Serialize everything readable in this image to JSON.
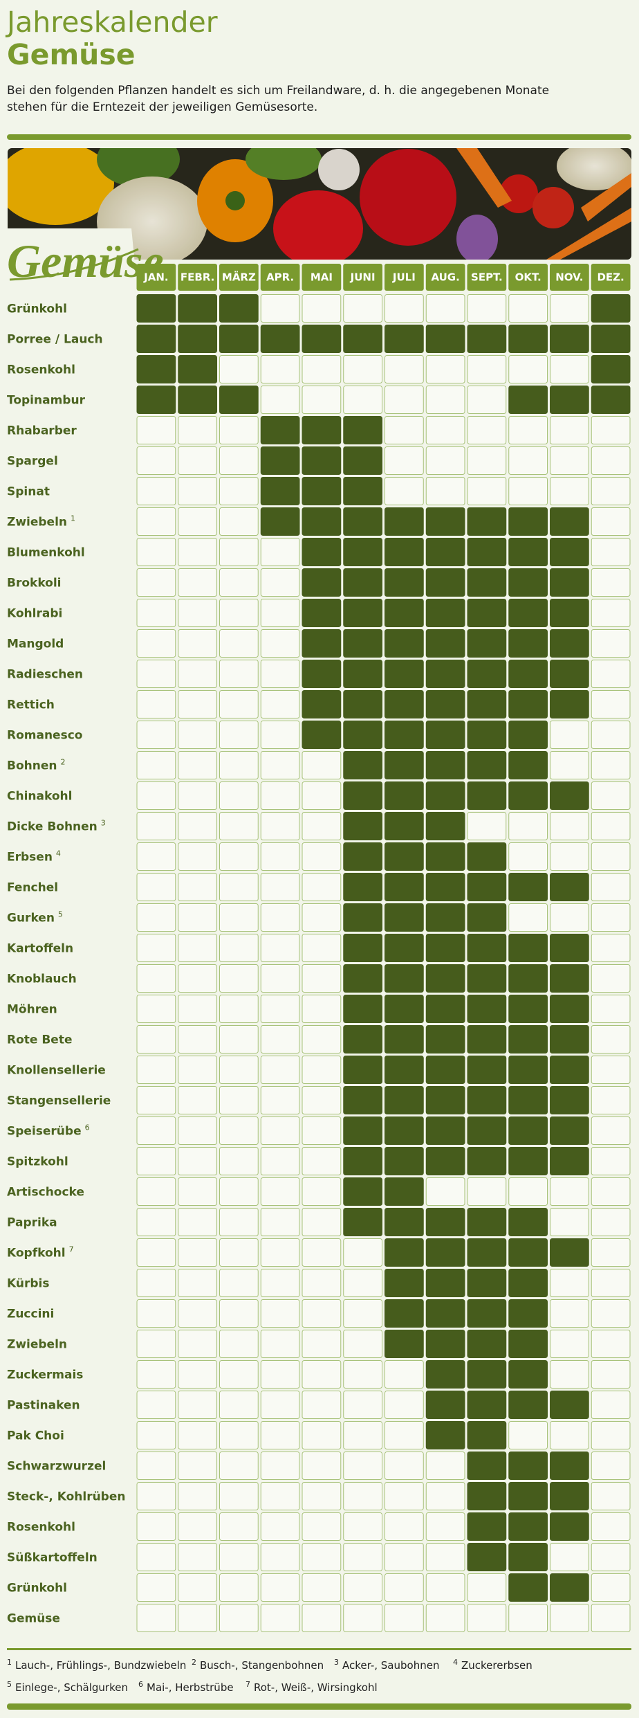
{
  "header": {
    "title": "Jahreskalender",
    "subtitle": "Gemüse",
    "intro": [
      "Bei den folgenden Pflanzen handelt es sich um Freilandware, d. h. die angegebenen Monate",
      "stehen für die Erntezeit der jeweiligen Gemüsesorte."
    ]
  },
  "logo": "Gemüse",
  "months": [
    "JAN.",
    "FEBR.",
    "MÄRZ",
    "APR.",
    "MAI",
    "JUNI",
    "JULI",
    "AUG.",
    "SEPT.",
    "OKT.",
    "NOV.",
    "DEZ."
  ],
  "rows": [
    {
      "name": "Grünkohl",
      "harvest": [
        true,
        true,
        true,
        false,
        false,
        false,
        false,
        false,
        false,
        false,
        false,
        true
      ]
    },
    {
      "name": "Porree / Lauch",
      "harvest": [
        true,
        true,
        true,
        true,
        true,
        true,
        true,
        true,
        true,
        true,
        true,
        true
      ]
    },
    {
      "name": "Rosenkohl",
      "harvest": [
        true,
        true,
        false,
        false,
        false,
        false,
        false,
        false,
        false,
        false,
        false,
        true
      ]
    },
    {
      "name": "Topinambur",
      "harvest": [
        true,
        true,
        true,
        false,
        false,
        false,
        false,
        false,
        false,
        true,
        true,
        true
      ]
    },
    {
      "name": "Rhabarber",
      "harvest": [
        false,
        false,
        false,
        true,
        true,
        true,
        false,
        false,
        false,
        false,
        false,
        false
      ]
    },
    {
      "name": "Spargel",
      "harvest": [
        false,
        false,
        false,
        true,
        true,
        true,
        false,
        false,
        false,
        false,
        false,
        false
      ]
    },
    {
      "name": "Spinat",
      "harvest": [
        false,
        false,
        false,
        true,
        true,
        true,
        false,
        false,
        false,
        false,
        false,
        false
      ]
    },
    {
      "name": "Zwiebeln",
      "sup": "1",
      "harvest": [
        false,
        false,
        false,
        true,
        true,
        true,
        true,
        true,
        true,
        true,
        true,
        false
      ]
    },
    {
      "name": "Blumenkohl",
      "harvest": [
        false,
        false,
        false,
        false,
        true,
        true,
        true,
        true,
        true,
        true,
        true,
        false
      ]
    },
    {
      "name": "Brokkoli",
      "harvest": [
        false,
        false,
        false,
        false,
        true,
        true,
        true,
        true,
        true,
        true,
        true,
        false
      ]
    },
    {
      "name": "Kohlrabi",
      "harvest": [
        false,
        false,
        false,
        false,
        true,
        true,
        true,
        true,
        true,
        true,
        true,
        false
      ]
    },
    {
      "name": "Mangold",
      "harvest": [
        false,
        false,
        false,
        false,
        true,
        true,
        true,
        true,
        true,
        true,
        true,
        false
      ]
    },
    {
      "name": "Radieschen",
      "harvest": [
        false,
        false,
        false,
        false,
        true,
        true,
        true,
        true,
        true,
        true,
        true,
        false
      ]
    },
    {
      "name": "Rettich",
      "harvest": [
        false,
        false,
        false,
        false,
        true,
        true,
        true,
        true,
        true,
        true,
        true,
        false
      ]
    },
    {
      "name": "Romanesco",
      "harvest": [
        false,
        false,
        false,
        false,
        true,
        true,
        true,
        true,
        true,
        true,
        false,
        false
      ]
    },
    {
      "name": "Bohnen",
      "sup": "2",
      "harvest": [
        false,
        false,
        false,
        false,
        false,
        true,
        true,
        true,
        true,
        true,
        false,
        false
      ]
    },
    {
      "name": "Chinakohl",
      "harvest": [
        false,
        false,
        false,
        false,
        false,
        true,
        true,
        true,
        true,
        true,
        true,
        false
      ]
    },
    {
      "name": "Dicke Bohnen",
      "sup": "3",
      "harvest": [
        false,
        false,
        false,
        false,
        false,
        true,
        true,
        true,
        false,
        false,
        false,
        false
      ]
    },
    {
      "name": "Erbsen",
      "sup": "4",
      "harvest": [
        false,
        false,
        false,
        false,
        false,
        true,
        true,
        true,
        true,
        false,
        false,
        false
      ]
    },
    {
      "name": "Fenchel",
      "harvest": [
        false,
        false,
        false,
        false,
        false,
        true,
        true,
        true,
        true,
        true,
        true,
        false
      ]
    },
    {
      "name": "Gurken",
      "sup": "5",
      "harvest": [
        false,
        false,
        false,
        false,
        false,
        true,
        true,
        true,
        true,
        false,
        false,
        false
      ]
    },
    {
      "name": "Kartoffeln",
      "harvest": [
        false,
        false,
        false,
        false,
        false,
        true,
        true,
        true,
        true,
        true,
        true,
        false
      ]
    },
    {
      "name": "Knoblauch",
      "harvest": [
        false,
        false,
        false,
        false,
        false,
        true,
        true,
        true,
        true,
        true,
        true,
        false
      ]
    },
    {
      "name": "Möhren",
      "harvest": [
        false,
        false,
        false,
        false,
        false,
        true,
        true,
        true,
        true,
        true,
        true,
        false
      ]
    },
    {
      "name": "Rote Bete",
      "harvest": [
        false,
        false,
        false,
        false,
        false,
        true,
        true,
        true,
        true,
        true,
        true,
        false
      ]
    },
    {
      "name": "Knollensellerie",
      "harvest": [
        false,
        false,
        false,
        false,
        false,
        true,
        true,
        true,
        true,
        true,
        true,
        false
      ]
    },
    {
      "name": "Stangensellerie",
      "harvest": [
        false,
        false,
        false,
        false,
        false,
        true,
        true,
        true,
        true,
        true,
        true,
        false
      ]
    },
    {
      "name": "Speiserübe",
      "sup": "6",
      "harvest": [
        false,
        false,
        false,
        false,
        false,
        true,
        true,
        true,
        true,
        true,
        true,
        false
      ]
    },
    {
      "name": "Spitzkohl",
      "harvest": [
        false,
        false,
        false,
        false,
        false,
        true,
        true,
        true,
        true,
        true,
        true,
        false
      ]
    },
    {
      "name": "Artischocke",
      "harvest": [
        false,
        false,
        false,
        false,
        false,
        true,
        true,
        false,
        false,
        false,
        false,
        false
      ]
    },
    {
      "name": "Paprika",
      "harvest": [
        false,
        false,
        false,
        false,
        false,
        true,
        true,
        true,
        true,
        true,
        false,
        false
      ]
    },
    {
      "name": "Kopfkohl",
      "sup": "7",
      "harvest": [
        false,
        false,
        false,
        false,
        false,
        false,
        true,
        true,
        true,
        true,
        true,
        false
      ]
    },
    {
      "name": "Kürbis",
      "harvest": [
        false,
        false,
        false,
        false,
        false,
        false,
        true,
        true,
        true,
        true,
        false,
        false
      ]
    },
    {
      "name": "Zuccini",
      "harvest": [
        false,
        false,
        false,
        false,
        false,
        false,
        true,
        true,
        true,
        true,
        false,
        false
      ]
    },
    {
      "name": "Zwiebeln",
      "harvest": [
        false,
        false,
        false,
        false,
        false,
        false,
        true,
        true,
        true,
        true,
        false,
        false
      ]
    },
    {
      "name": "Zuckermais",
      "harvest": [
        false,
        false,
        false,
        false,
        false,
        false,
        false,
        true,
        true,
        true,
        false,
        false
      ]
    },
    {
      "name": "Pastinaken",
      "harvest": [
        false,
        false,
        false,
        false,
        false,
        false,
        false,
        true,
        true,
        true,
        true,
        false
      ]
    },
    {
      "name": "Pak Choi",
      "harvest": [
        false,
        false,
        false,
        false,
        false,
        false,
        false,
        true,
        true,
        false,
        false,
        false
      ]
    },
    {
      "name": "Schwarzwurzel",
      "harvest": [
        false,
        false,
        false,
        false,
        false,
        false,
        false,
        false,
        true,
        true,
        true,
        false
      ]
    },
    {
      "name": "Steck-, Kohlrüben",
      "harvest": [
        false,
        false,
        false,
        false,
        false,
        false,
        false,
        false,
        true,
        true,
        true,
        false
      ]
    },
    {
      "name": "Rosenkohl",
      "harvest": [
        false,
        false,
        false,
        false,
        false,
        false,
        false,
        false,
        true,
        true,
        true,
        false
      ]
    },
    {
      "name": "Süßkartoffeln",
      "harvest": [
        false,
        false,
        false,
        false,
        false,
        false,
        false,
        false,
        true,
        true,
        false,
        false
      ]
    },
    {
      "name": "Grünkohl",
      "harvest": [
        false,
        false,
        false,
        false,
        false,
        false,
        false,
        false,
        false,
        true,
        true,
        false
      ]
    },
    {
      "name": "Gemüse",
      "harvest": [
        false,
        false,
        false,
        false,
        false,
        false,
        false,
        false,
        false,
        false,
        false,
        false
      ]
    }
  ],
  "footnotes": [
    [
      {
        "sup": "1",
        "text": "Lauch-, Frühlings-, Bundzwiebeln"
      },
      {
        "sup": "2",
        "text": "Busch-, Stangenbohnen"
      },
      {
        "sup": "3",
        "text": "Acker-, Saubohnen"
      },
      {
        "sup": "4",
        "text": "Zuckererbsen"
      }
    ],
    [
      {
        "sup": "5",
        "text": "Einlege-, Schälgurken"
      },
      {
        "sup": "6",
        "text": "Mai-, Herbstrübe"
      },
      {
        "sup": "7",
        "text": "Rot-, Weiß-, Wirsingkohl"
      }
    ]
  ]
}
